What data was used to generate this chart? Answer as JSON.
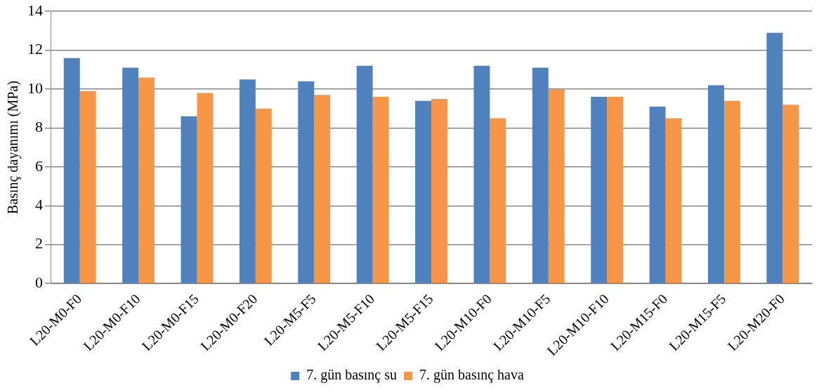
{
  "chart_data": {
    "type": "bar",
    "ylabel": "Basınç dayanımı (MPa)",
    "categories": [
      "L20-M0-F0",
      "L20-M0-F10",
      "L20-M0-F15",
      "L20-M0-F20",
      "L20-M5-F5",
      "L20-M5-F10",
      "L20-M5-F15",
      "L20-M10-F0",
      "L20-M10-F5",
      "L20-M10-F10",
      "L20-M15-F0",
      "L20-M15-F5",
      "L20-M20-F0"
    ],
    "series": [
      {
        "name": "7. gün basınç su",
        "color": "#4f81bd",
        "values": [
          11.6,
          11.1,
          8.6,
          10.5,
          10.4,
          11.2,
          9.4,
          11.2,
          11.1,
          9.6,
          9.1,
          10.2,
          12.9
        ]
      },
      {
        "name": "7. gün basınç hava",
        "color": "#f79646",
        "values": [
          9.9,
          10.6,
          9.8,
          9.0,
          9.7,
          9.6,
          9.5,
          8.5,
          10.0,
          9.6,
          8.5,
          9.4,
          9.2
        ]
      }
    ],
    "ylim": [
      0,
      14
    ],
    "yticks": [
      0,
      2,
      4,
      6,
      8,
      10,
      12,
      14
    ],
    "grid": "y",
    "legend": "bottom"
  }
}
